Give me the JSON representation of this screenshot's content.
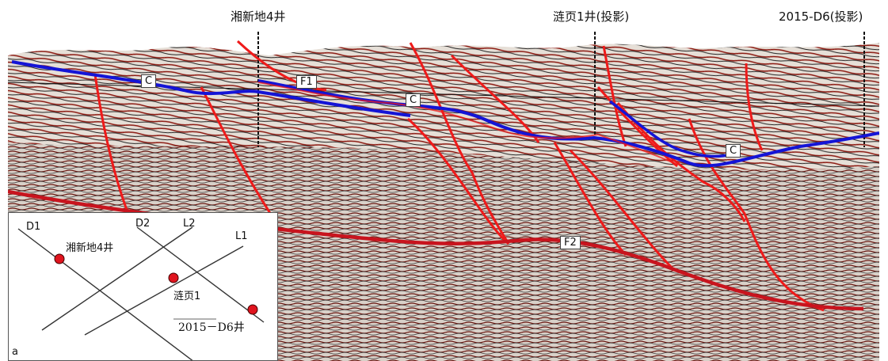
{
  "wells": [
    {
      "label": "湘新地4井"
    },
    {
      "label": "涟页1井(投影)"
    },
    {
      "label": "2015-D6(投影)"
    }
  ],
  "horizon_labels": [
    "C",
    "C",
    "C"
  ],
  "fault_labels": [
    "F1",
    "F2"
  ],
  "inset": {
    "line_labels": [
      "D1",
      "D2",
      "L2",
      "L1"
    ],
    "well_labels": [
      "湘新地4井",
      "涟页1",
      "2015－D6井"
    ],
    "panel_label": "a"
  },
  "colors": {
    "horizon": "#1414d6",
    "minor_fault": "#ef1a1a",
    "major_fault": "#c8141e",
    "well_line": "#111111",
    "well_dot": "#e0141e"
  }
}
